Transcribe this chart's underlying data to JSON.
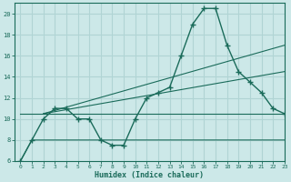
{
  "xlabel": "Humidex (Indice chaleur)",
  "bg_color": "#cce8e8",
  "grid_color": "#b0d4d4",
  "line_color": "#1a6b5a",
  "xlim": [
    -0.5,
    23
  ],
  "ylim": [
    6,
    21
  ],
  "yticks": [
    6,
    8,
    10,
    12,
    14,
    16,
    18,
    20
  ],
  "xticks": [
    0,
    1,
    2,
    3,
    4,
    5,
    6,
    7,
    8,
    9,
    10,
    11,
    12,
    13,
    14,
    15,
    16,
    17,
    18,
    19,
    20,
    21,
    22,
    23
  ],
  "series_main_x": [
    0,
    1,
    2,
    3,
    4,
    5,
    6,
    7,
    8,
    9,
    10,
    11,
    12,
    13,
    14,
    15,
    16,
    17,
    18,
    19,
    20,
    21,
    22,
    23
  ],
  "series_main_y": [
    6,
    8,
    10,
    11,
    11,
    10,
    10,
    8,
    7.5,
    7.5,
    10,
    12,
    12.5,
    13,
    16,
    19,
    20.5,
    20.5,
    17,
    14.5,
    13.5,
    12.5,
    11,
    10.5
  ],
  "series_flat_x": [
    0,
    1,
    2,
    3,
    4,
    5,
    6,
    7,
    8,
    9,
    10,
    11,
    12,
    13,
    14,
    15,
    16,
    17,
    18,
    19,
    20,
    21,
    22,
    23
  ],
  "series_flat_y": [
    6,
    8,
    8,
    8,
    8,
    8,
    8,
    8,
    8,
    8,
    8,
    8,
    8,
    8,
    8,
    8,
    8,
    8,
    8,
    8,
    8,
    8,
    8,
    8
  ],
  "series_line1_x": [
    0,
    23
  ],
  "series_line1_y": [
    10.5,
    10.5
  ],
  "series_line2_x": [
    2,
    23
  ],
  "series_line2_y": [
    10.5,
    17
  ],
  "series_line3_x": [
    2,
    23
  ],
  "series_line3_y": [
    10.5,
    14.5
  ]
}
